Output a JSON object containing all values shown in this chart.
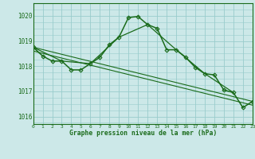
{
  "title": "Graphe pression niveau de la mer (hPa)",
  "bg_color": "#cce8e8",
  "grid_color": "#99cccc",
  "line_color": "#1a6b1a",
  "xlim": [
    0,
    23
  ],
  "ylim": [
    1015.7,
    1020.5
  ],
  "yticks": [
    1016,
    1017,
    1018,
    1019,
    1020
  ],
  "xticks": [
    0,
    1,
    2,
    3,
    4,
    5,
    6,
    7,
    8,
    9,
    10,
    11,
    12,
    13,
    14,
    15,
    16,
    17,
    18,
    19,
    20,
    21,
    22,
    23
  ],
  "series_main": {
    "x": [
      0,
      1,
      2,
      3,
      4,
      5,
      6,
      7,
      8,
      9,
      10,
      11,
      12,
      13,
      14,
      15,
      16,
      17,
      18,
      19,
      20,
      21,
      22,
      23
    ],
    "y": [
      1018.75,
      1018.4,
      1018.2,
      1018.2,
      1017.85,
      1017.85,
      1018.1,
      1018.35,
      1018.85,
      1019.15,
      1019.93,
      1019.97,
      1019.65,
      1019.5,
      1018.65,
      1018.65,
      1018.35,
      1017.95,
      1017.7,
      1017.65,
      1017.05,
      1016.95,
      1016.35,
      1016.6
    ]
  },
  "series_3h": {
    "x": [
      0,
      3,
      6,
      9,
      12,
      15,
      18,
      21
    ],
    "y": [
      1018.75,
      1018.2,
      1018.1,
      1019.15,
      1019.65,
      1018.65,
      1017.7,
      1016.95
    ]
  },
  "series_trend1": {
    "x": [
      0,
      23
    ],
    "y": [
      1018.75,
      1016.6
    ]
  },
  "series_trend2": {
    "x": [
      0,
      23
    ],
    "y": [
      1018.6,
      1016.45
    ]
  }
}
